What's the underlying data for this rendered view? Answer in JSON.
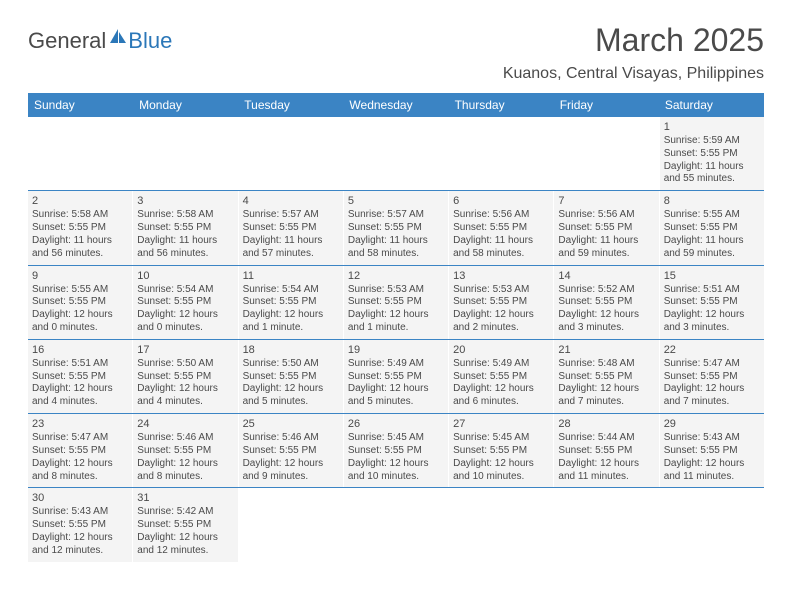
{
  "logo": {
    "text_dark": "General",
    "text_blue": "Blue"
  },
  "title": "March 2025",
  "location": "Kuanos, Central Visayas, Philippines",
  "colors": {
    "header_bg": "#3b84c4",
    "header_text": "#ffffff",
    "cell_bg": "#f4f4f4",
    "text": "#4a4a4a",
    "rule": "#3b84c4",
    "logo_blue": "#2b77b8"
  },
  "weekdays": [
    "Sunday",
    "Monday",
    "Tuesday",
    "Wednesday",
    "Thursday",
    "Friday",
    "Saturday"
  ],
  "weeks": [
    [
      null,
      null,
      null,
      null,
      null,
      null,
      {
        "n": "1",
        "sr": "Sunrise: 5:59 AM",
        "ss": "Sunset: 5:55 PM",
        "dl": "Daylight: 11 hours and 55 minutes."
      }
    ],
    [
      {
        "n": "2",
        "sr": "Sunrise: 5:58 AM",
        "ss": "Sunset: 5:55 PM",
        "dl": "Daylight: 11 hours and 56 minutes."
      },
      {
        "n": "3",
        "sr": "Sunrise: 5:58 AM",
        "ss": "Sunset: 5:55 PM",
        "dl": "Daylight: 11 hours and 56 minutes."
      },
      {
        "n": "4",
        "sr": "Sunrise: 5:57 AM",
        "ss": "Sunset: 5:55 PM",
        "dl": "Daylight: 11 hours and 57 minutes."
      },
      {
        "n": "5",
        "sr": "Sunrise: 5:57 AM",
        "ss": "Sunset: 5:55 PM",
        "dl": "Daylight: 11 hours and 58 minutes."
      },
      {
        "n": "6",
        "sr": "Sunrise: 5:56 AM",
        "ss": "Sunset: 5:55 PM",
        "dl": "Daylight: 11 hours and 58 minutes."
      },
      {
        "n": "7",
        "sr": "Sunrise: 5:56 AM",
        "ss": "Sunset: 5:55 PM",
        "dl": "Daylight: 11 hours and 59 minutes."
      },
      {
        "n": "8",
        "sr": "Sunrise: 5:55 AM",
        "ss": "Sunset: 5:55 PM",
        "dl": "Daylight: 11 hours and 59 minutes."
      }
    ],
    [
      {
        "n": "9",
        "sr": "Sunrise: 5:55 AM",
        "ss": "Sunset: 5:55 PM",
        "dl": "Daylight: 12 hours and 0 minutes."
      },
      {
        "n": "10",
        "sr": "Sunrise: 5:54 AM",
        "ss": "Sunset: 5:55 PM",
        "dl": "Daylight: 12 hours and 0 minutes."
      },
      {
        "n": "11",
        "sr": "Sunrise: 5:54 AM",
        "ss": "Sunset: 5:55 PM",
        "dl": "Daylight: 12 hours and 1 minute."
      },
      {
        "n": "12",
        "sr": "Sunrise: 5:53 AM",
        "ss": "Sunset: 5:55 PM",
        "dl": "Daylight: 12 hours and 1 minute."
      },
      {
        "n": "13",
        "sr": "Sunrise: 5:53 AM",
        "ss": "Sunset: 5:55 PM",
        "dl": "Daylight: 12 hours and 2 minutes."
      },
      {
        "n": "14",
        "sr": "Sunrise: 5:52 AM",
        "ss": "Sunset: 5:55 PM",
        "dl": "Daylight: 12 hours and 3 minutes."
      },
      {
        "n": "15",
        "sr": "Sunrise: 5:51 AM",
        "ss": "Sunset: 5:55 PM",
        "dl": "Daylight: 12 hours and 3 minutes."
      }
    ],
    [
      {
        "n": "16",
        "sr": "Sunrise: 5:51 AM",
        "ss": "Sunset: 5:55 PM",
        "dl": "Daylight: 12 hours and 4 minutes."
      },
      {
        "n": "17",
        "sr": "Sunrise: 5:50 AM",
        "ss": "Sunset: 5:55 PM",
        "dl": "Daylight: 12 hours and 4 minutes."
      },
      {
        "n": "18",
        "sr": "Sunrise: 5:50 AM",
        "ss": "Sunset: 5:55 PM",
        "dl": "Daylight: 12 hours and 5 minutes."
      },
      {
        "n": "19",
        "sr": "Sunrise: 5:49 AM",
        "ss": "Sunset: 5:55 PM",
        "dl": "Daylight: 12 hours and 5 minutes."
      },
      {
        "n": "20",
        "sr": "Sunrise: 5:49 AM",
        "ss": "Sunset: 5:55 PM",
        "dl": "Daylight: 12 hours and 6 minutes."
      },
      {
        "n": "21",
        "sr": "Sunrise: 5:48 AM",
        "ss": "Sunset: 5:55 PM",
        "dl": "Daylight: 12 hours and 7 minutes."
      },
      {
        "n": "22",
        "sr": "Sunrise: 5:47 AM",
        "ss": "Sunset: 5:55 PM",
        "dl": "Daylight: 12 hours and 7 minutes."
      }
    ],
    [
      {
        "n": "23",
        "sr": "Sunrise: 5:47 AM",
        "ss": "Sunset: 5:55 PM",
        "dl": "Daylight: 12 hours and 8 minutes."
      },
      {
        "n": "24",
        "sr": "Sunrise: 5:46 AM",
        "ss": "Sunset: 5:55 PM",
        "dl": "Daylight: 12 hours and 8 minutes."
      },
      {
        "n": "25",
        "sr": "Sunrise: 5:46 AM",
        "ss": "Sunset: 5:55 PM",
        "dl": "Daylight: 12 hours and 9 minutes."
      },
      {
        "n": "26",
        "sr": "Sunrise: 5:45 AM",
        "ss": "Sunset: 5:55 PM",
        "dl": "Daylight: 12 hours and 10 minutes."
      },
      {
        "n": "27",
        "sr": "Sunrise: 5:45 AM",
        "ss": "Sunset: 5:55 PM",
        "dl": "Daylight: 12 hours and 10 minutes."
      },
      {
        "n": "28",
        "sr": "Sunrise: 5:44 AM",
        "ss": "Sunset: 5:55 PM",
        "dl": "Daylight: 12 hours and 11 minutes."
      },
      {
        "n": "29",
        "sr": "Sunrise: 5:43 AM",
        "ss": "Sunset: 5:55 PM",
        "dl": "Daylight: 12 hours and 11 minutes."
      }
    ],
    [
      {
        "n": "30",
        "sr": "Sunrise: 5:43 AM",
        "ss": "Sunset: 5:55 PM",
        "dl": "Daylight: 12 hours and 12 minutes."
      },
      {
        "n": "31",
        "sr": "Sunrise: 5:42 AM",
        "ss": "Sunset: 5:55 PM",
        "dl": "Daylight: 12 hours and 12 minutes."
      },
      null,
      null,
      null,
      null,
      null
    ]
  ]
}
